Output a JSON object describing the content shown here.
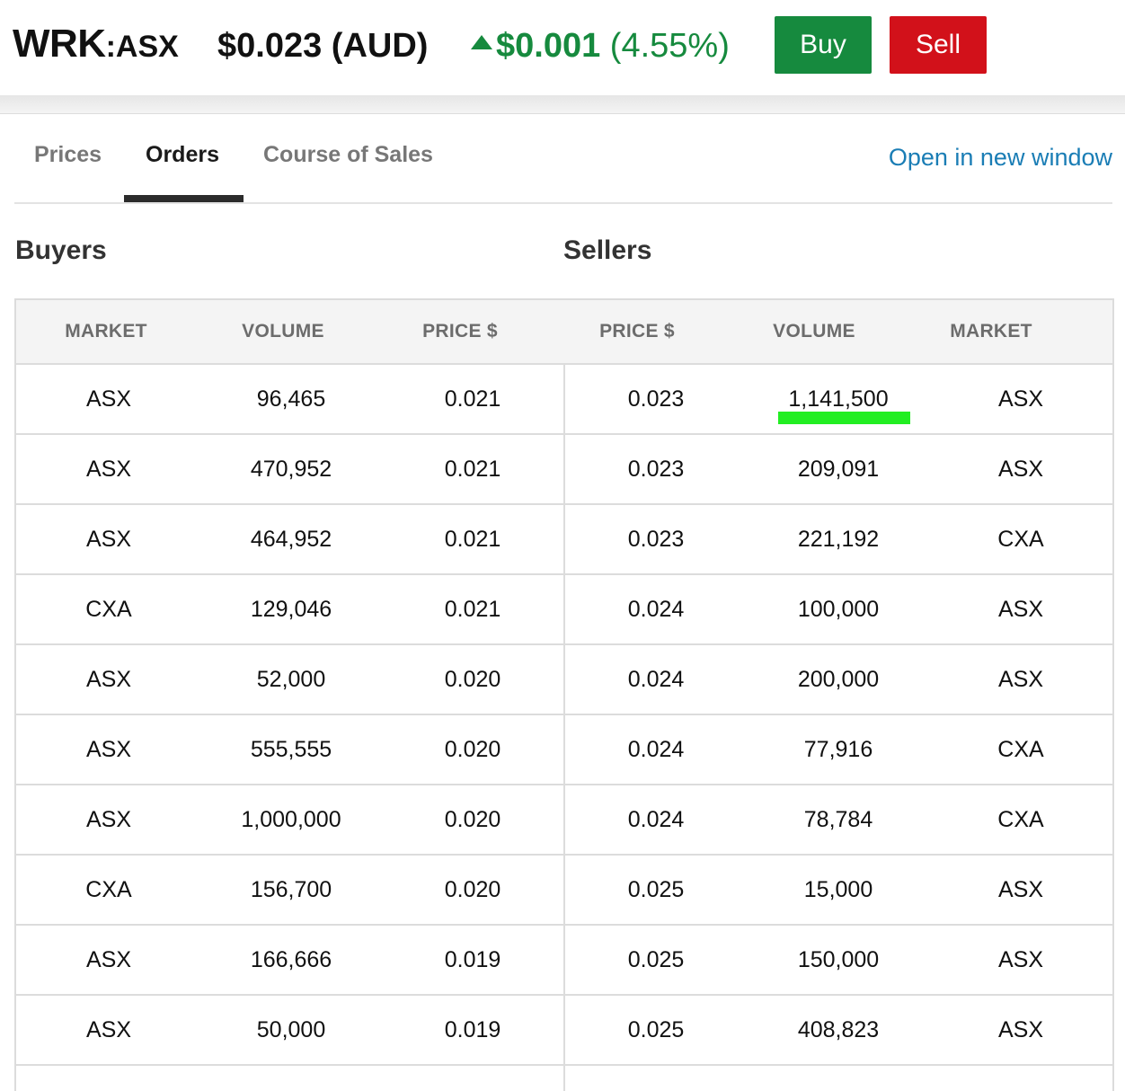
{
  "header": {
    "symbol": "WRK",
    "exchange_suffix": ":ASX",
    "price": "$0.023 (AUD)",
    "change_amount": "$0.001",
    "change_percent": "(4.55%)",
    "buy_label": "Buy",
    "sell_label": "Sell",
    "colors": {
      "up": "#168a3e",
      "buy": "#168a3e",
      "sell": "#d2111a"
    }
  },
  "tabs": {
    "items": [
      {
        "label": "Prices",
        "active": false
      },
      {
        "label": "Orders",
        "active": true
      },
      {
        "label": "Course of Sales",
        "active": false
      }
    ],
    "open_link": "Open in new window"
  },
  "orders": {
    "buyers_title": "Buyers",
    "sellers_title": "Sellers",
    "columns": [
      "MARKET",
      "VOLUME",
      "PRICE $",
      "PRICE $",
      "VOLUME",
      "MARKET"
    ],
    "rows": [
      {
        "buy_market": "ASX",
        "buy_volume": "96,465",
        "buy_price": "0.021",
        "sell_price": "0.023",
        "sell_volume": "1,141,500",
        "sell_market": "ASX"
      },
      {
        "buy_market": "ASX",
        "buy_volume": "470,952",
        "buy_price": "0.021",
        "sell_price": "0.023",
        "sell_volume": "209,091",
        "sell_market": "ASX"
      },
      {
        "buy_market": "ASX",
        "buy_volume": "464,952",
        "buy_price": "0.021",
        "sell_price": "0.023",
        "sell_volume": "221,192",
        "sell_market": "CXA"
      },
      {
        "buy_market": "CXA",
        "buy_volume": "129,046",
        "buy_price": "0.021",
        "sell_price": "0.024",
        "sell_volume": "100,000",
        "sell_market": "ASX"
      },
      {
        "buy_market": "ASX",
        "buy_volume": "52,000",
        "buy_price": "0.020",
        "sell_price": "0.024",
        "sell_volume": "200,000",
        "sell_market": "ASX"
      },
      {
        "buy_market": "ASX",
        "buy_volume": "555,555",
        "buy_price": "0.020",
        "sell_price": "0.024",
        "sell_volume": "77,916",
        "sell_market": "CXA"
      },
      {
        "buy_market": "ASX",
        "buy_volume": "1,000,000",
        "buy_price": "0.020",
        "sell_price": "0.024",
        "sell_volume": "78,784",
        "sell_market": "CXA"
      },
      {
        "buy_market": "CXA",
        "buy_volume": "156,700",
        "buy_price": "0.020",
        "sell_price": "0.025",
        "sell_volume": "15,000",
        "sell_market": "ASX"
      },
      {
        "buy_market": "ASX",
        "buy_volume": "166,666",
        "buy_price": "0.019",
        "sell_price": "0.025",
        "sell_volume": "150,000",
        "sell_market": "ASX"
      },
      {
        "buy_market": "ASX",
        "buy_volume": "50,000",
        "buy_price": "0.019",
        "sell_price": "0.025",
        "sell_volume": "408,823",
        "sell_market": "ASX"
      },
      {
        "buy_market": "",
        "buy_volume": "",
        "buy_price": "",
        "sell_price": "",
        "sell_volume": "",
        "sell_market": ""
      }
    ],
    "highlight_color": "#22ee22"
  }
}
